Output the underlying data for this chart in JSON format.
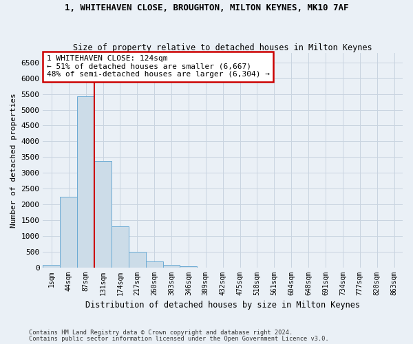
{
  "title": "1, WHITEHAVEN CLOSE, BROUGHTON, MILTON KEYNES, MK10 7AF",
  "subtitle": "Size of property relative to detached houses in Milton Keynes",
  "xlabel": "Distribution of detached houses by size in Milton Keynes",
  "ylabel": "Number of detached properties",
  "footnote1": "Contains HM Land Registry data © Crown copyright and database right 2024.",
  "footnote2": "Contains public sector information licensed under the Open Government Licence v3.0.",
  "bar_labels": [
    "1sqm",
    "44sqm",
    "87sqm",
    "131sqm",
    "174sqm",
    "217sqm",
    "260sqm",
    "303sqm",
    "346sqm",
    "389sqm",
    "432sqm",
    "475sqm",
    "518sqm",
    "561sqm",
    "604sqm",
    "648sqm",
    "691sqm",
    "734sqm",
    "777sqm",
    "820sqm",
    "863sqm"
  ],
  "bar_values": [
    70,
    2250,
    5420,
    3380,
    1300,
    490,
    190,
    80,
    30,
    0,
    0,
    0,
    0,
    0,
    0,
    0,
    0,
    0,
    0,
    0,
    0
  ],
  "bar_color": "#ccdce8",
  "bar_edgecolor": "#6aaad4",
  "grid_color": "#c8d4e0",
  "bg_color": "#eaf0f6",
  "property_line_x": 2.5,
  "annotation_text": "1 WHITEHAVEN CLOSE: 124sqm\n← 51% of detached houses are smaller (6,667)\n48% of semi-detached houses are larger (6,304) →",
  "annotation_box_facecolor": "#ffffff",
  "annotation_box_edgecolor": "#cc0000",
  "property_line_color": "#cc0000",
  "ylim": [
    0,
    6800
  ],
  "yticks": [
    0,
    500,
    1000,
    1500,
    2000,
    2500,
    3000,
    3500,
    4000,
    4500,
    5000,
    5500,
    6000,
    6500
  ]
}
